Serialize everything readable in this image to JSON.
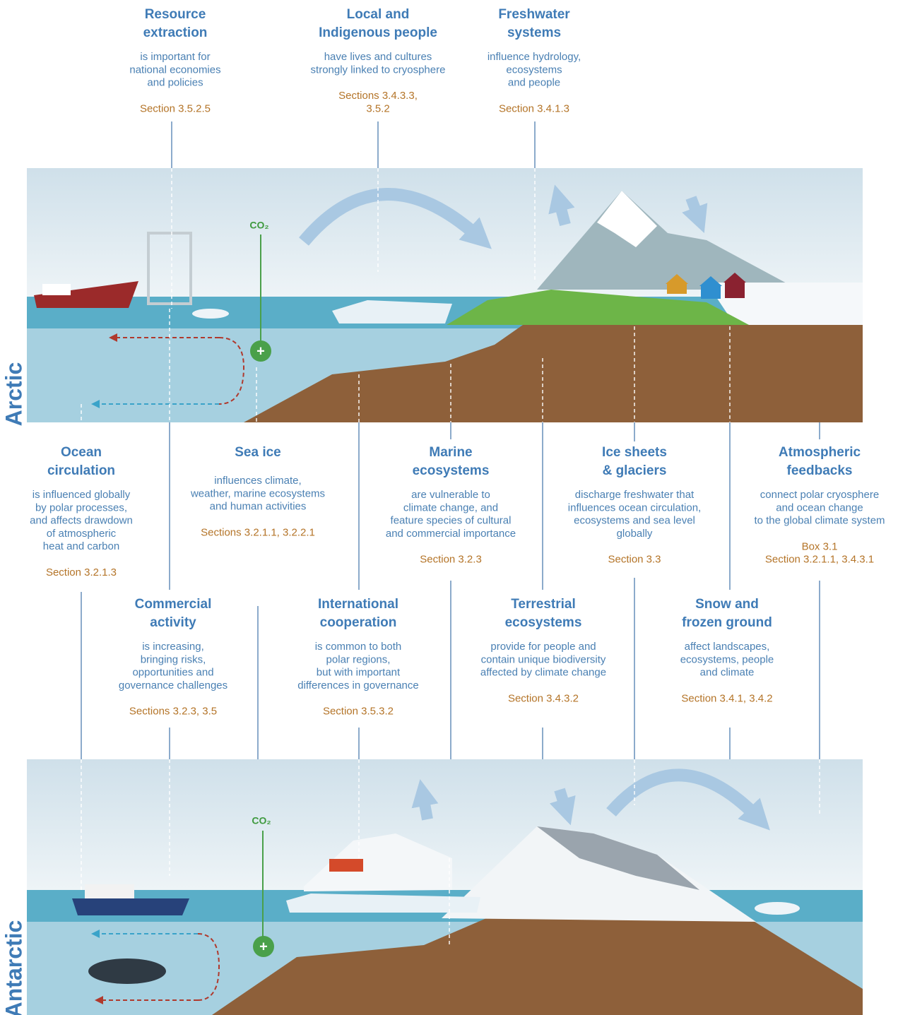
{
  "arctic_panel": {
    "label": "Arctic",
    "co2": "CO₂"
  },
  "antarctic_panel": {
    "label": "Antarctic",
    "co2": "CO₂"
  },
  "labels": [
    {
      "title": [
        "Resource",
        "extraction"
      ],
      "description": [
        "is important for",
        "national economies",
        "and policies"
      ],
      "reference": [
        "Section 3.5.2.5"
      ]
    },
    {
      "title": [
        "Local and",
        "Indigenous people"
      ],
      "description": [
        "have lives and cultures",
        "strongly linked to cryosphere"
      ],
      "reference": [
        "Sections 3.4.3.3,",
        "3.5.2"
      ]
    },
    {
      "title": [
        "Freshwater",
        "systems"
      ],
      "description": [
        "influence hydrology,",
        "ecosystems",
        "and people"
      ],
      "reference": [
        "Section 3.4.1.3"
      ]
    },
    {
      "title": [
        "Ocean",
        "circulation"
      ],
      "description": [
        "is influenced globally",
        "by polar processes,",
        "and affects drawdown",
        "of atmospheric",
        "heat and carbon"
      ],
      "reference": [
        "Section 3.2.1.3"
      ]
    },
    {
      "title": [
        "Sea ice"
      ],
      "description": [
        "influences climate,",
        "weather, marine ecosystems",
        "and human activities"
      ],
      "reference": [
        "Sections 3.2.1.1, 3.2.2.1"
      ]
    },
    {
      "title": [
        "Marine",
        "ecosystems"
      ],
      "description": [
        "are vulnerable to",
        "climate change, and",
        "feature species of cultural",
        "and commercial importance"
      ],
      "reference": [
        "Section 3.2.3"
      ]
    },
    {
      "title": [
        "Ice sheets",
        "& glaciers"
      ],
      "description": [
        "discharge freshwater that",
        "influences ocean circulation,",
        "ecosystems and sea level",
        "globally"
      ],
      "reference": [
        "Section 3.3"
      ]
    },
    {
      "title": [
        "Atmospheric",
        "feedbacks"
      ],
      "description": [
        "connect polar cryosphere",
        "and ocean change",
        "to the global climate system"
      ],
      "reference": [
        "Box 3.1",
        "Section 3.2.1.1, 3.4.3.1"
      ]
    },
    {
      "title": [
        "Commercial",
        "activity"
      ],
      "description": [
        "is increasing,",
        "bringing risks,",
        "opportunities and",
        "governance challenges"
      ],
      "reference": [
        "Sections 3.2.3, 3.5"
      ]
    },
    {
      "title": [
        "International",
        "cooperation"
      ],
      "description": [
        "is common to both",
        "polar regions,",
        "but with important",
        "differences in governance"
      ],
      "reference": [
        "Section 3.5.3.2"
      ]
    },
    {
      "title": [
        "Terrestrial",
        "ecosystems"
      ],
      "description": [
        "provide for people and",
        "contain unique biodiversity",
        "affected by climate change"
      ],
      "reference": [
        "Section 3.4.3.2"
      ]
    },
    {
      "title": [
        "Snow and",
        "frozen ground"
      ],
      "description": [
        "affect landscapes,",
        "ecosystems, people",
        "and climate"
      ],
      "reference": [
        "Section 3.4.1, 3.4.2"
      ]
    }
  ]
}
